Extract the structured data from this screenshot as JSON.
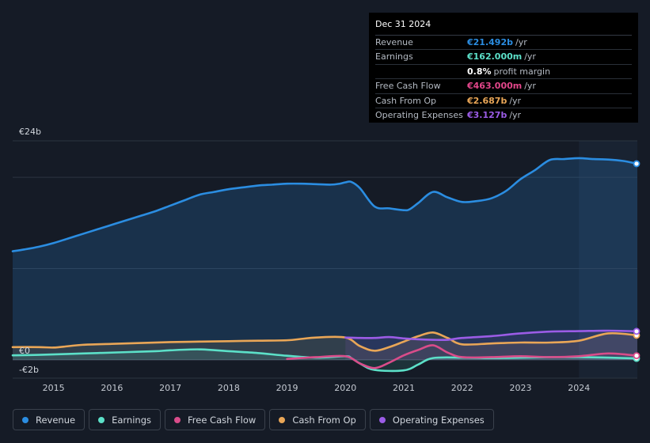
{
  "tooltip": {
    "date": "Dec 31 2024",
    "rows": [
      {
        "label": "Revenue",
        "value": "€21.492b",
        "unit": "/yr",
        "color": "#2b8de1"
      },
      {
        "label": "Earnings",
        "value": "€162.000m",
        "unit": "/yr",
        "color": "#5ce0c8"
      },
      {
        "label": "",
        "value": "0.8%",
        "unit": "profit margin",
        "color": "#ffffff"
      },
      {
        "label": "Free Cash Flow",
        "value": "€463.000m",
        "unit": "/yr",
        "color": "#e2468a"
      },
      {
        "label": "Cash From Op",
        "value": "€2.687b",
        "unit": "/yr",
        "color": "#e9a657"
      },
      {
        "label": "Operating Expenses",
        "value": "€3.127b",
        "unit": "/yr",
        "color": "#9b5ce6"
      }
    ]
  },
  "legend": [
    {
      "label": "Revenue",
      "color": "#2b8de1"
    },
    {
      "label": "Earnings",
      "color": "#5ce0c8"
    },
    {
      "label": "Free Cash Flow",
      "color": "#d94c8a"
    },
    {
      "label": "Cash From Op",
      "color": "#e9a657"
    },
    {
      "label": "Operating Expenses",
      "color": "#9b5ce6"
    }
  ],
  "chart_data": {
    "type": "area",
    "title": "",
    "xlabel": "",
    "ylabel": "",
    "unit": "€",
    "ylim": [
      -2,
      24
    ],
    "xlim": [
      2014.3,
      2025.0
    ],
    "y_tick_labels": [
      {
        "value": 24,
        "label": "€24b"
      },
      {
        "value": 0,
        "label": "€0"
      },
      {
        "value": -2,
        "label": "-€2b"
      }
    ],
    "x_ticks": [
      2015,
      2016,
      2017,
      2018,
      2019,
      2020,
      2021,
      2022,
      2023,
      2024
    ],
    "highlight_from": 2024.0,
    "series": [
      {
        "name": "Revenue",
        "color": "#2b8de1",
        "fill": true,
        "x": [
          2014.3,
          2014.5,
          2014.75,
          2015.0,
          2015.25,
          2015.5,
          2015.75,
          2016.0,
          2016.25,
          2016.5,
          2016.75,
          2017.0,
          2017.25,
          2017.5,
          2017.75,
          2018.0,
          2018.25,
          2018.5,
          2018.75,
          2019.0,
          2019.25,
          2019.5,
          2019.75,
          2019.9,
          2020.0,
          2020.1,
          2020.25,
          2020.5,
          2020.75,
          2021.0,
          2021.1,
          2021.25,
          2021.5,
          2021.75,
          2022.0,
          2022.25,
          2022.5,
          2022.75,
          2023.0,
          2023.25,
          2023.5,
          2023.75,
          2024.0,
          2024.25,
          2024.5,
          2024.75,
          2025.0
        ],
        "y": [
          11.9,
          12.1,
          12.4,
          12.8,
          13.3,
          13.8,
          14.3,
          14.8,
          15.3,
          15.8,
          16.3,
          16.9,
          17.5,
          18.1,
          18.4,
          18.7,
          18.9,
          19.1,
          19.2,
          19.3,
          19.3,
          19.25,
          19.2,
          19.3,
          19.45,
          19.5,
          18.8,
          16.8,
          16.6,
          16.4,
          16.5,
          17.2,
          18.4,
          17.8,
          17.3,
          17.4,
          17.7,
          18.5,
          19.8,
          20.8,
          21.9,
          22.0,
          22.1,
          22.0,
          21.95,
          21.8,
          21.49
        ]
      },
      {
        "name": "Earnings",
        "color": "#5ce0c8",
        "fill": true,
        "x": [
          2014.3,
          2014.75,
          2015.25,
          2015.75,
          2016.25,
          2016.75,
          2017.0,
          2017.5,
          2018.0,
          2018.5,
          2019.0,
          2019.5,
          2020.0,
          2020.1,
          2020.25,
          2020.5,
          2021.0,
          2021.25,
          2021.5,
          2022.0,
          2022.5,
          2023.0,
          2023.5,
          2024.0,
          2024.5,
          2025.0
        ],
        "y": [
          0.5,
          0.55,
          0.65,
          0.75,
          0.85,
          0.95,
          1.05,
          1.15,
          0.95,
          0.75,
          0.45,
          0.25,
          0.4,
          0.2,
          -0.4,
          -1.1,
          -1.15,
          -0.5,
          0.2,
          0.25,
          0.2,
          0.25,
          0.3,
          0.3,
          0.25,
          0.16
        ]
      },
      {
        "name": "Free Cash Flow",
        "color": "#d94c8a",
        "fill": false,
        "x": [
          2019.0,
          2019.5,
          2020.0,
          2020.25,
          2020.5,
          2020.75,
          2021.0,
          2021.25,
          2021.5,
          2021.75,
          2022.0,
          2022.5,
          2023.0,
          2023.5,
          2024.0,
          2024.5,
          2025.0
        ],
        "y": [
          0.1,
          0.3,
          0.4,
          -0.4,
          -0.9,
          -0.3,
          0.5,
          1.1,
          1.6,
          0.8,
          0.3,
          0.3,
          0.4,
          0.3,
          0.4,
          0.7,
          0.46
        ]
      },
      {
        "name": "Cash From Op",
        "color": "#e9a657",
        "fill": true,
        "x": [
          2014.3,
          2014.75,
          2015.0,
          2015.25,
          2015.5,
          2016.0,
          2016.5,
          2017.0,
          2017.5,
          2018.0,
          2018.5,
          2019.0,
          2019.25,
          2019.5,
          2020.0,
          2020.25,
          2020.5,
          2020.75,
          2021.0,
          2021.25,
          2021.5,
          2021.75,
          2022.0,
          2022.5,
          2023.0,
          2023.5,
          2024.0,
          2024.5,
          2025.0
        ],
        "y": [
          1.4,
          1.4,
          1.35,
          1.5,
          1.65,
          1.75,
          1.85,
          1.95,
          2.0,
          2.05,
          2.1,
          2.15,
          2.3,
          2.45,
          2.45,
          1.5,
          1.0,
          1.4,
          2.0,
          2.6,
          3.0,
          2.4,
          1.7,
          1.8,
          1.9,
          1.9,
          2.1,
          2.9,
          2.69
        ]
      },
      {
        "name": "Operating Expenses",
        "color": "#9b5ce6",
        "fill": true,
        "x": [
          2020.0,
          2020.25,
          2020.5,
          2020.75,
          2021.0,
          2021.25,
          2021.5,
          2021.75,
          2022.0,
          2022.5,
          2023.0,
          2023.5,
          2024.0,
          2024.5,
          2025.0
        ],
        "y": [
          2.45,
          2.4,
          2.4,
          2.5,
          2.35,
          2.25,
          2.2,
          2.2,
          2.4,
          2.6,
          2.9,
          3.1,
          3.15,
          3.2,
          3.13
        ]
      }
    ]
  }
}
